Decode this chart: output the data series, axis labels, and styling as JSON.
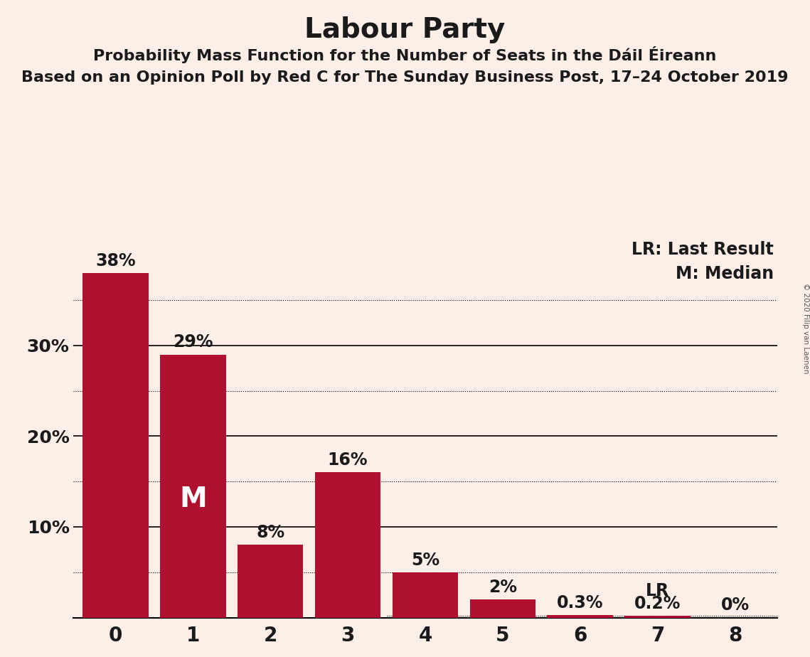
{
  "title": "Labour Party",
  "subtitle1": "Probability Mass Function for the Number of Seats in the Dáil Éireann",
  "subtitle2": "Based on an Opinion Poll by Red C for The Sunday Business Post, 17–24 October 2019",
  "copyright": "© 2020 Filip van Laenen",
  "categories": [
    0,
    1,
    2,
    3,
    4,
    5,
    6,
    7,
    8
  ],
  "values": [
    0.38,
    0.29,
    0.08,
    0.16,
    0.05,
    0.02,
    0.003,
    0.002,
    0.0
  ],
  "labels": [
    "38%",
    "29%",
    "8%",
    "16%",
    "5%",
    "2%",
    "0.3%",
    "0.2%",
    "0%"
  ],
  "bar_color": "#b01030",
  "background_color": "#fdeee8",
  "text_color": "#1a1a1a",
  "median_bar": 1,
  "lr_bar": 7,
  "lr_value": 0.002,
  "legend_lr": "LR: Last Result",
  "legend_m": "M: Median",
  "median_label": "M",
  "lr_label": "LR",
  "yticks": [
    0.1,
    0.2,
    0.3
  ],
  "ytick_labels": [
    "10%",
    "20%",
    "30%"
  ],
  "ylim": [
    0,
    0.42
  ],
  "grid_values": [
    0.1,
    0.2,
    0.3
  ],
  "dotted_grid_values": [
    0.05,
    0.15,
    0.25,
    0.35
  ],
  "title_fontsize": 28,
  "subtitle_fontsize": 16,
  "label_fontsize": 17,
  "ytick_fontsize": 18,
  "xtick_fontsize": 20,
  "legend_fontsize": 17,
  "median_fontsize": 28
}
